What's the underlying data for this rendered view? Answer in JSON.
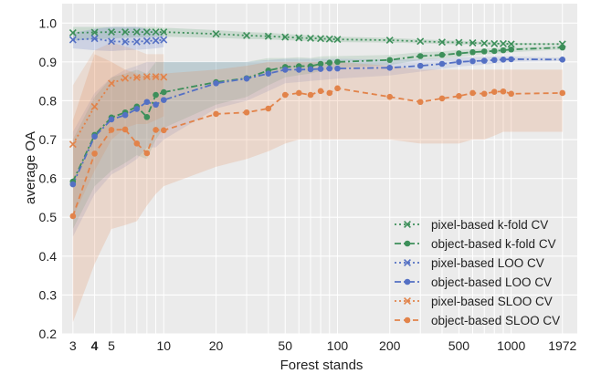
{
  "chart_data": {
    "type": "line",
    "xlabel": "Forest stands",
    "ylabel": "average OA",
    "xscale": "log",
    "xlim": [
      2.6,
      2400
    ],
    "ylim": [
      0.2,
      1.05
    ],
    "grid": true,
    "legend_position": "lower-right",
    "x_tick_labels": [
      {
        "value": 3,
        "label": "3",
        "bold": false
      },
      {
        "value": 4,
        "label": "4",
        "bold": true
      },
      {
        "value": 5,
        "label": "5",
        "bold": false
      },
      {
        "value": 10,
        "label": "10",
        "bold": false
      },
      {
        "value": 20,
        "label": "20",
        "bold": false
      },
      {
        "value": 50,
        "label": "50",
        "bold": false
      },
      {
        "value": 100,
        "label": "100",
        "bold": false
      },
      {
        "value": 200,
        "label": "200",
        "bold": false
      },
      {
        "value": 500,
        "label": "500",
        "bold": false
      },
      {
        "value": 1000,
        "label": "1000",
        "bold": false
      },
      {
        "value": 1972,
        "label": "1972",
        "bold": false
      }
    ],
    "x_minor_gridlines": [
      3,
      4,
      5,
      6,
      7,
      8,
      9,
      10,
      20,
      30,
      40,
      50,
      60,
      70,
      80,
      90,
      100,
      200,
      300,
      400,
      500,
      600,
      700,
      800,
      900,
      1000,
      1972
    ],
    "y_ticks": [
      0.2,
      0.3,
      0.4,
      0.5,
      0.6,
      0.7,
      0.8,
      0.9,
      1.0
    ],
    "y_tick_labels": [
      "0.2",
      "0.3",
      "0.4",
      "0.5",
      "0.6",
      "0.7",
      "0.8",
      "0.9",
      "1.0"
    ],
    "series": [
      {
        "name": "pixel-based k-fold CV",
        "color": "#3d8f5a",
        "marker": "x",
        "linestyle": "dotted",
        "band_opacity": 0.18,
        "x": [
          3,
          4,
          5,
          6,
          7,
          8,
          9,
          10,
          20,
          30,
          40,
          50,
          60,
          70,
          80,
          90,
          100,
          200,
          300,
          400,
          500,
          600,
          700,
          800,
          900,
          1000,
          1972
        ],
        "y": [
          0.975,
          0.976,
          0.977,
          0.977,
          0.977,
          0.977,
          0.977,
          0.977,
          0.972,
          0.968,
          0.966,
          0.964,
          0.962,
          0.961,
          0.96,
          0.959,
          0.958,
          0.956,
          0.953,
          0.951,
          0.95,
          0.949,
          0.948,
          0.947,
          0.947,
          0.946,
          0.946
        ],
        "lower": [
          0.955,
          0.958,
          0.96,
          0.962,
          0.963,
          0.963,
          0.964,
          0.965,
          0.962,
          0.959,
          0.958,
          0.956,
          0.955,
          0.954,
          0.953,
          0.952,
          0.951,
          0.95,
          0.948,
          0.946,
          0.945,
          0.945,
          0.944,
          0.943,
          0.943,
          0.943,
          0.944
        ],
        "upper": [
          0.99,
          0.99,
          0.99,
          0.99,
          0.99,
          0.99,
          0.99,
          0.988,
          0.982,
          0.977,
          0.975,
          0.972,
          0.97,
          0.968,
          0.967,
          0.966,
          0.965,
          0.962,
          0.958,
          0.956,
          0.955,
          0.953,
          0.952,
          0.951,
          0.95,
          0.949,
          0.948
        ]
      },
      {
        "name": "object-based k-fold CV",
        "color": "#3d8f5a",
        "marker": "o",
        "linestyle": "dashdot",
        "band_opacity": 0.15,
        "x": [
          3,
          4,
          5,
          6,
          7,
          8,
          9,
          10,
          20,
          30,
          40,
          50,
          60,
          70,
          80,
          90,
          100,
          200,
          300,
          400,
          500,
          600,
          700,
          800,
          900,
          1000,
          1972
        ],
        "y": [
          0.592,
          0.712,
          0.757,
          0.77,
          0.785,
          0.758,
          0.815,
          0.822,
          0.848,
          0.858,
          0.878,
          0.887,
          0.889,
          0.889,
          0.895,
          0.898,
          0.9,
          0.905,
          0.915,
          0.918,
          0.922,
          0.925,
          0.927,
          0.928,
          0.93,
          0.932,
          0.937
        ],
        "lower": [
          0.47,
          0.58,
          0.62,
          0.64,
          0.66,
          0.65,
          0.7,
          0.73,
          0.79,
          0.81,
          0.84,
          0.86,
          0.866,
          0.87,
          0.877,
          0.881,
          0.885,
          0.892,
          0.905,
          0.909,
          0.913,
          0.917,
          0.92,
          0.921,
          0.923,
          0.925,
          0.932
        ],
        "upper": [
          0.7,
          0.81,
          0.86,
          0.87,
          0.88,
          0.87,
          0.9,
          0.9,
          0.9,
          0.9,
          0.91,
          0.91,
          0.912,
          0.91,
          0.914,
          0.915,
          0.915,
          0.918,
          0.925,
          0.927,
          0.931,
          0.933,
          0.934,
          0.935,
          0.937,
          0.939,
          0.942
        ]
      },
      {
        "name": "pixel-based LOO CV",
        "color": "#5470c4",
        "marker": "x",
        "linestyle": "dotted",
        "band_opacity": 0.2,
        "x": [
          3,
          4,
          5,
          6,
          7,
          8,
          9,
          10
        ],
        "y": [
          0.957,
          0.96,
          0.953,
          0.952,
          0.952,
          0.954,
          0.955,
          0.957
        ],
        "lower": [
          0.935,
          0.93,
          0.928,
          0.93,
          0.931,
          0.933,
          0.935,
          0.938
        ],
        "upper": [
          0.975,
          0.985,
          0.99,
          0.99,
          0.99,
          0.985,
          0.98,
          0.975
        ]
      },
      {
        "name": "object-based LOO CV",
        "color": "#5470c4",
        "marker": "o",
        "linestyle": "dashdot",
        "band_opacity": 0.15,
        "x": [
          3,
          4,
          5,
          6,
          7,
          8,
          9,
          10,
          20,
          30,
          40,
          50,
          60,
          70,
          80,
          90,
          100,
          200,
          300,
          400,
          500,
          600,
          700,
          800,
          900,
          1000,
          1972
        ],
        "y": [
          0.585,
          0.708,
          0.752,
          0.763,
          0.779,
          0.797,
          0.79,
          0.802,
          0.845,
          0.857,
          0.87,
          0.88,
          0.88,
          0.881,
          0.882,
          0.883,
          0.883,
          0.885,
          0.89,
          0.895,
          0.9,
          0.902,
          0.903,
          0.905,
          0.906,
          0.907,
          0.906
        ],
        "lower": [
          0.45,
          0.56,
          0.61,
          0.63,
          0.65,
          0.68,
          0.68,
          0.7,
          0.78,
          0.8,
          0.825,
          0.845,
          0.848,
          0.851,
          0.853,
          0.855,
          0.857,
          0.865,
          0.875,
          0.882,
          0.888,
          0.891,
          0.893,
          0.896,
          0.898,
          0.9,
          0.902
        ],
        "upper": [
          0.72,
          0.82,
          0.86,
          0.88,
          0.89,
          0.9,
          0.9,
          0.9,
          0.9,
          0.9,
          0.905,
          0.908,
          0.908,
          0.908,
          0.908,
          0.908,
          0.908,
          0.906,
          0.907,
          0.909,
          0.912,
          0.913,
          0.913,
          0.914,
          0.914,
          0.914,
          0.911
        ]
      },
      {
        "name": "pixel-based SLOO CV",
        "color": "#e2834a",
        "marker": "x",
        "linestyle": "dotted",
        "band_opacity": 0.16,
        "x": [
          3,
          4,
          5,
          6,
          7,
          8,
          9,
          10
        ],
        "y": [
          0.688,
          0.785,
          0.845,
          0.858,
          0.86,
          0.862,
          0.862,
          0.861
        ],
        "lower": [
          0.5,
          0.62,
          0.7,
          0.73,
          0.74,
          0.74,
          0.75,
          0.76
        ],
        "upper": [
          0.84,
          0.93,
          0.95,
          0.94,
          0.93,
          0.92,
          0.92,
          0.92
        ]
      },
      {
        "name": "object-based SLOO CV",
        "color": "#e2834a",
        "marker": "o",
        "linestyle": "dashed",
        "band_opacity": 0.2,
        "x": [
          3,
          4,
          5,
          6,
          7,
          8,
          9,
          10,
          20,
          30,
          40,
          50,
          60,
          70,
          80,
          90,
          100,
          200,
          300,
          400,
          500,
          600,
          700,
          800,
          900,
          1000,
          1972
        ],
        "y": [
          0.503,
          0.664,
          0.725,
          0.726,
          0.69,
          0.665,
          0.725,
          0.724,
          0.766,
          0.77,
          0.78,
          0.815,
          0.82,
          0.815,
          0.825,
          0.82,
          0.832,
          0.81,
          0.797,
          0.806,
          0.812,
          0.82,
          0.818,
          0.823,
          0.824,
          0.818,
          0.82
        ],
        "lower": [
          0.23,
          0.38,
          0.47,
          0.48,
          0.49,
          0.53,
          0.56,
          0.58,
          0.63,
          0.65,
          0.67,
          0.69,
          0.7,
          0.7,
          0.7,
          0.7,
          0.7,
          0.7,
          0.69,
          0.69,
          0.69,
          0.7,
          0.7,
          0.71,
          0.72,
          0.72,
          0.72
        ],
        "upper": [
          0.75,
          0.92,
          0.9,
          0.88,
          0.87,
          0.86,
          0.87,
          0.87,
          0.88,
          0.89,
          0.9,
          0.9,
          0.9,
          0.9,
          0.9,
          0.9,
          0.9,
          0.89,
          0.88,
          0.88,
          0.88,
          0.88,
          0.88,
          0.88,
          0.88,
          0.88,
          0.88
        ]
      }
    ]
  }
}
